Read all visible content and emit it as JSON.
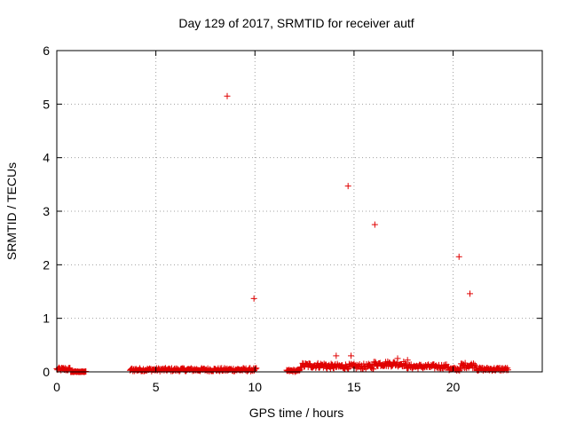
{
  "chart_data": {
    "type": "scatter",
    "title": "Day 129 of 2017, SRMTID for receiver autf",
    "xlabel": "GPS time / hours",
    "ylabel": "SRMTID / TECUs",
    "xlim": [
      0,
      24.5
    ],
    "ylim": [
      0,
      6
    ],
    "xticks": [
      0,
      5,
      10,
      15,
      20
    ],
    "yticks": [
      0,
      1,
      2,
      3,
      4,
      5,
      6
    ],
    "grid": true,
    "series": [
      {
        "name": "SRMTID",
        "color": "#e00000",
        "marker": "plus",
        "outliers": [
          [
            8.6,
            5.15
          ],
          [
            9.95,
            1.37
          ],
          [
            14.7,
            3.47
          ],
          [
            16.05,
            2.75
          ],
          [
            20.3,
            2.15
          ],
          [
            20.85,
            1.46
          ],
          [
            14.85,
            0.3
          ],
          [
            14.1,
            0.3
          ],
          [
            17.7,
            0.22
          ],
          [
            17.2,
            0.25
          ]
        ],
        "segments": [
          {
            "start": 0.0,
            "end": 0.7,
            "level": 0.05,
            "jitter": 0.03
          },
          {
            "start": 0.7,
            "end": 1.5,
            "level": 0.0,
            "jitter": 0.01
          },
          {
            "start": 3.7,
            "end": 10.1,
            "level": 0.04,
            "jitter": 0.03
          },
          {
            "start": 11.6,
            "end": 12.3,
            "level": 0.02,
            "jitter": 0.02
          },
          {
            "start": 12.3,
            "end": 13.6,
            "level": 0.12,
            "jitter": 0.05
          },
          {
            "start": 13.6,
            "end": 16.0,
            "level": 0.1,
            "jitter": 0.05
          },
          {
            "start": 16.0,
            "end": 17.6,
            "level": 0.15,
            "jitter": 0.05
          },
          {
            "start": 17.6,
            "end": 19.8,
            "level": 0.1,
            "jitter": 0.04
          },
          {
            "start": 19.8,
            "end": 20.4,
            "level": 0.05,
            "jitter": 0.03
          },
          {
            "start": 20.4,
            "end": 21.2,
            "level": 0.12,
            "jitter": 0.05
          },
          {
            "start": 21.2,
            "end": 22.8,
            "level": 0.05,
            "jitter": 0.03
          }
        ]
      }
    ]
  }
}
